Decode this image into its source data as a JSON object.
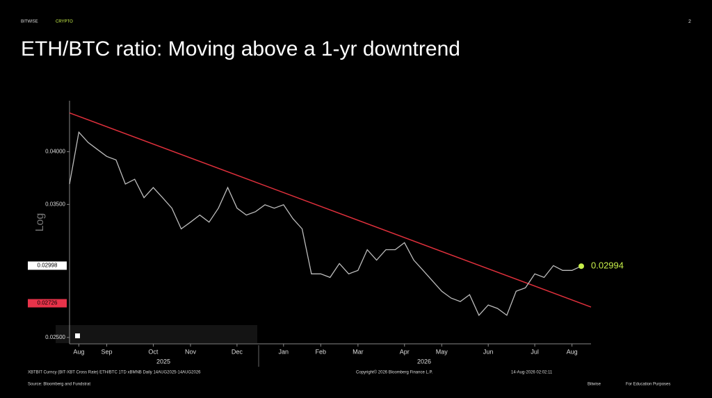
{
  "header": {
    "brand": "BITWISE",
    "section": "CRYPTO",
    "page": "2"
  },
  "chart_data": {
    "type": "line",
    "title": "ETH/BTC ratio: Moving above a 1-yr downtrend",
    "y_label": "Log",
    "log_scale": true,
    "grid": false,
    "categories": [
      null,
      "Aug",
      null,
      null,
      "Sep",
      null,
      null,
      null,
      null,
      "Oct",
      null,
      null,
      null,
      "Nov",
      null,
      null,
      null,
      null,
      "Dec",
      null,
      null,
      null,
      null,
      "Jan",
      null,
      null,
      null,
      "Feb",
      null,
      null,
      null,
      "Mar",
      null,
      null,
      null,
      null,
      "Apr",
      null,
      null,
      null,
      "May",
      null,
      null,
      null,
      null,
      "Jun",
      null,
      null,
      null,
      null,
      "Jul",
      null,
      null,
      null,
      "Aug",
      null
    ],
    "years": [
      "2025",
      "2026"
    ],
    "series": [
      {
        "name": "ETH/BTC",
        "color": "#bdbdbd",
        "values": [
          0.03685,
          0.04202,
          0.04093,
          0.04022,
          0.03952,
          0.03917,
          0.03685,
          0.0373,
          0.0356,
          0.03653,
          0.0356,
          0.03467,
          0.0329,
          0.03347,
          0.03407,
          0.03347,
          0.03467,
          0.03653,
          0.03467,
          0.03407,
          0.03437,
          0.03497,
          0.03467,
          0.03497,
          0.03377,
          0.0329,
          0.02936,
          0.02936,
          0.0291,
          0.03014,
          0.02936,
          0.02962,
          0.03121,
          0.0304,
          0.03121,
          0.03121,
          0.03177,
          0.0304,
          0.02962,
          0.02885,
          0.0281,
          0.02762,
          0.02738,
          0.02786,
          0.02644,
          0.02714,
          0.0269,
          0.02644,
          0.0281,
          0.02835,
          0.02936,
          0.0291,
          0.02998,
          0.02962,
          0.02962,
          0.02994
        ]
      }
    ],
    "last_value_color": "#c8f04a",
    "trendline": {
      "color": "#e0303c",
      "values": [
        0.04412,
        0.027
      ]
    },
    "axis_markers": [
      {
        "value": 0.02998,
        "color": "#ffffff",
        "text_color": "#000000"
      },
      {
        "value": 0.02726,
        "color": "#e8334a",
        "text_color": "#000000"
      }
    ],
    "ylim": [
      0.0246,
      0.0455
    ],
    "yticks": [
      {
        "value": 0.025,
        "label": "0.02500"
      },
      {
        "value": 0.035,
        "label": "0.03500"
      },
      {
        "value": 0.04,
        "label": "0.04000"
      }
    ]
  },
  "footer": {
    "series_info": "XBTBIT Curncy (BIT-XBT Cross Rate) ETH/BTC 1TD xBMNB Daily 14AUG2025-14AUG2026",
    "copyright": "Copyright© 2026 Bloomberg Finance L.P.",
    "timestamp": "14-Aug-2026 02:02:11",
    "source": "Source: Bloomberg and Fundstrat",
    "brand": "Bitwise",
    "disclaimer": "For Education Purposes"
  }
}
